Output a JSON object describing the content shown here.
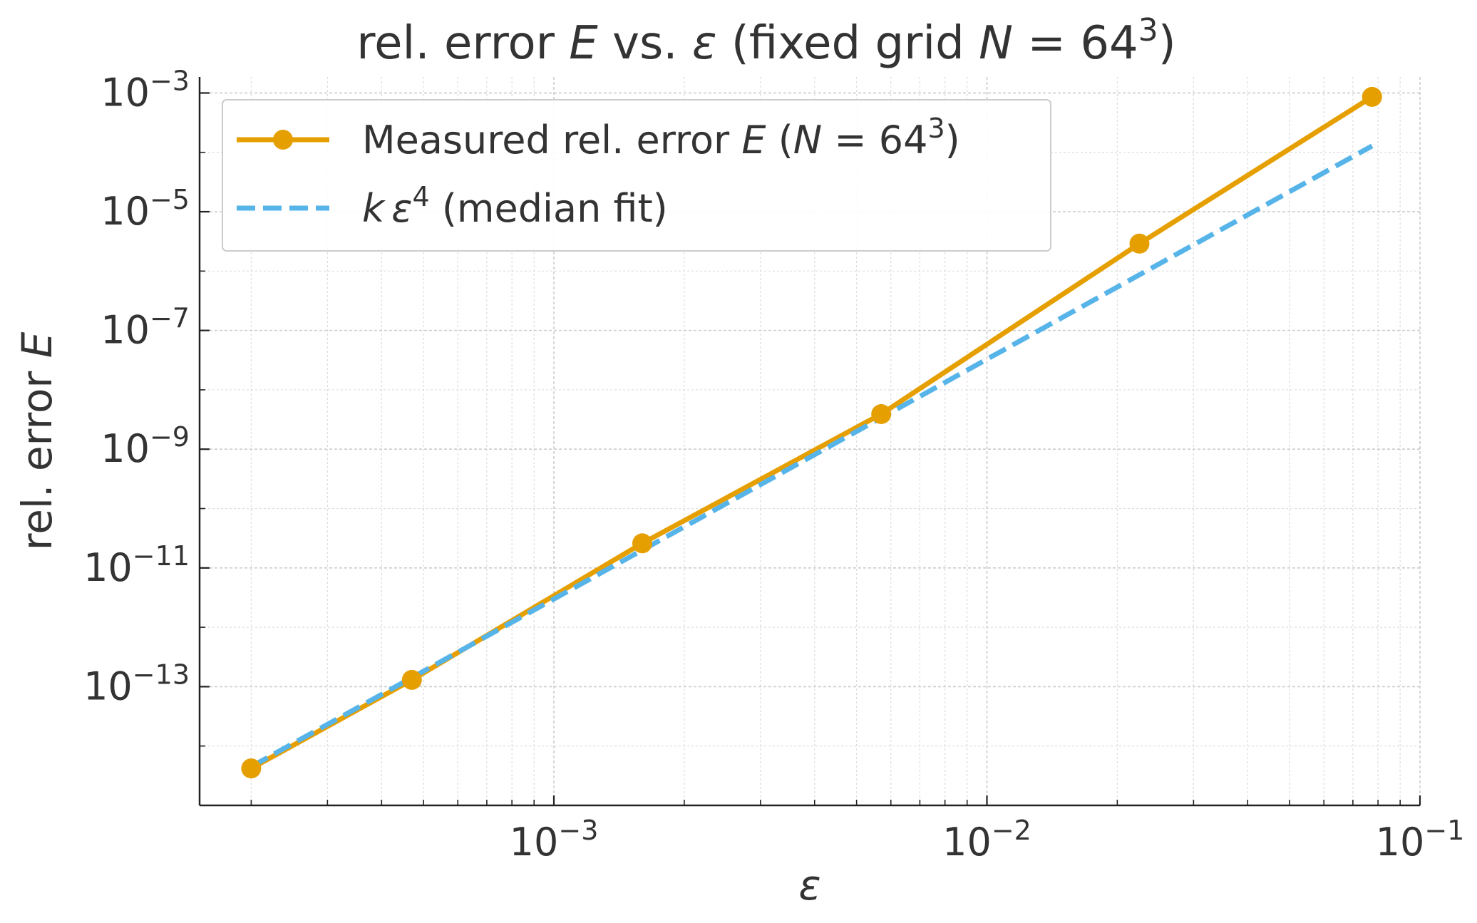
{
  "chart_data": {
    "type": "line",
    "title": {
      "prefix": "rel. error ",
      "var1": "E",
      "mid": " vs. ",
      "var2": "ε",
      "suffix1": " (fixed grid ",
      "var3": "N",
      "eq": " = 64",
      "sup": "3",
      "close": ")"
    },
    "xlabel": "ε",
    "ylabel": {
      "prefix": "rel. error ",
      "var": "E"
    },
    "x_scale": "log",
    "y_scale": "log",
    "xlim": [
      0.000152,
      0.1
    ],
    "ylim": [
      1e-15,
      0.00186
    ],
    "x_ticks": [
      {
        "value": 0.001,
        "base": "10",
        "exp": "−3"
      },
      {
        "value": 0.01,
        "base": "10",
        "exp": "−2"
      },
      {
        "value": 0.1,
        "base": "10",
        "exp": "−1"
      }
    ],
    "y_ticks": [
      {
        "value": 1e-13,
        "base": "10",
        "exp": "−13"
      },
      {
        "value": 1e-11,
        "base": "10",
        "exp": "−11"
      },
      {
        "value": 1e-09,
        "base": "10",
        "exp": "−9"
      },
      {
        "value": 1e-07,
        "base": "10",
        "exp": "−7"
      },
      {
        "value": 1e-05,
        "base": "10",
        "exp": "−5"
      },
      {
        "value": 0.001,
        "base": "10",
        "exp": "−3"
      }
    ],
    "grid": true,
    "legend_position": "upper-left",
    "series": [
      {
        "name": {
          "prefix": "Measured rel. error ",
          "var1": "E",
          "mid": " (",
          "var2": "N",
          "eq": " = 64",
          "sup": "3",
          "close": ")"
        },
        "style": "solid-markers",
        "color": "#E69F00",
        "x": [
          0.0002,
          0.00047,
          0.0016,
          0.0057,
          0.0225,
          0.0775
        ],
        "y": [
          4.2e-15,
          1.3e-13,
          2.6e-11,
          3.9e-09,
          2.9e-06,
          0.00086
        ]
      },
      {
        "name": {
          "var1": "k",
          "var2": "ε",
          "sup": "4",
          "rest": " (median fit)"
        },
        "style": "dashed",
        "color": "#56B4E9",
        "x": [
          0.0002,
          0.0775
        ],
        "y": [
          4.5e-15,
          0.000128
        ]
      }
    ]
  }
}
